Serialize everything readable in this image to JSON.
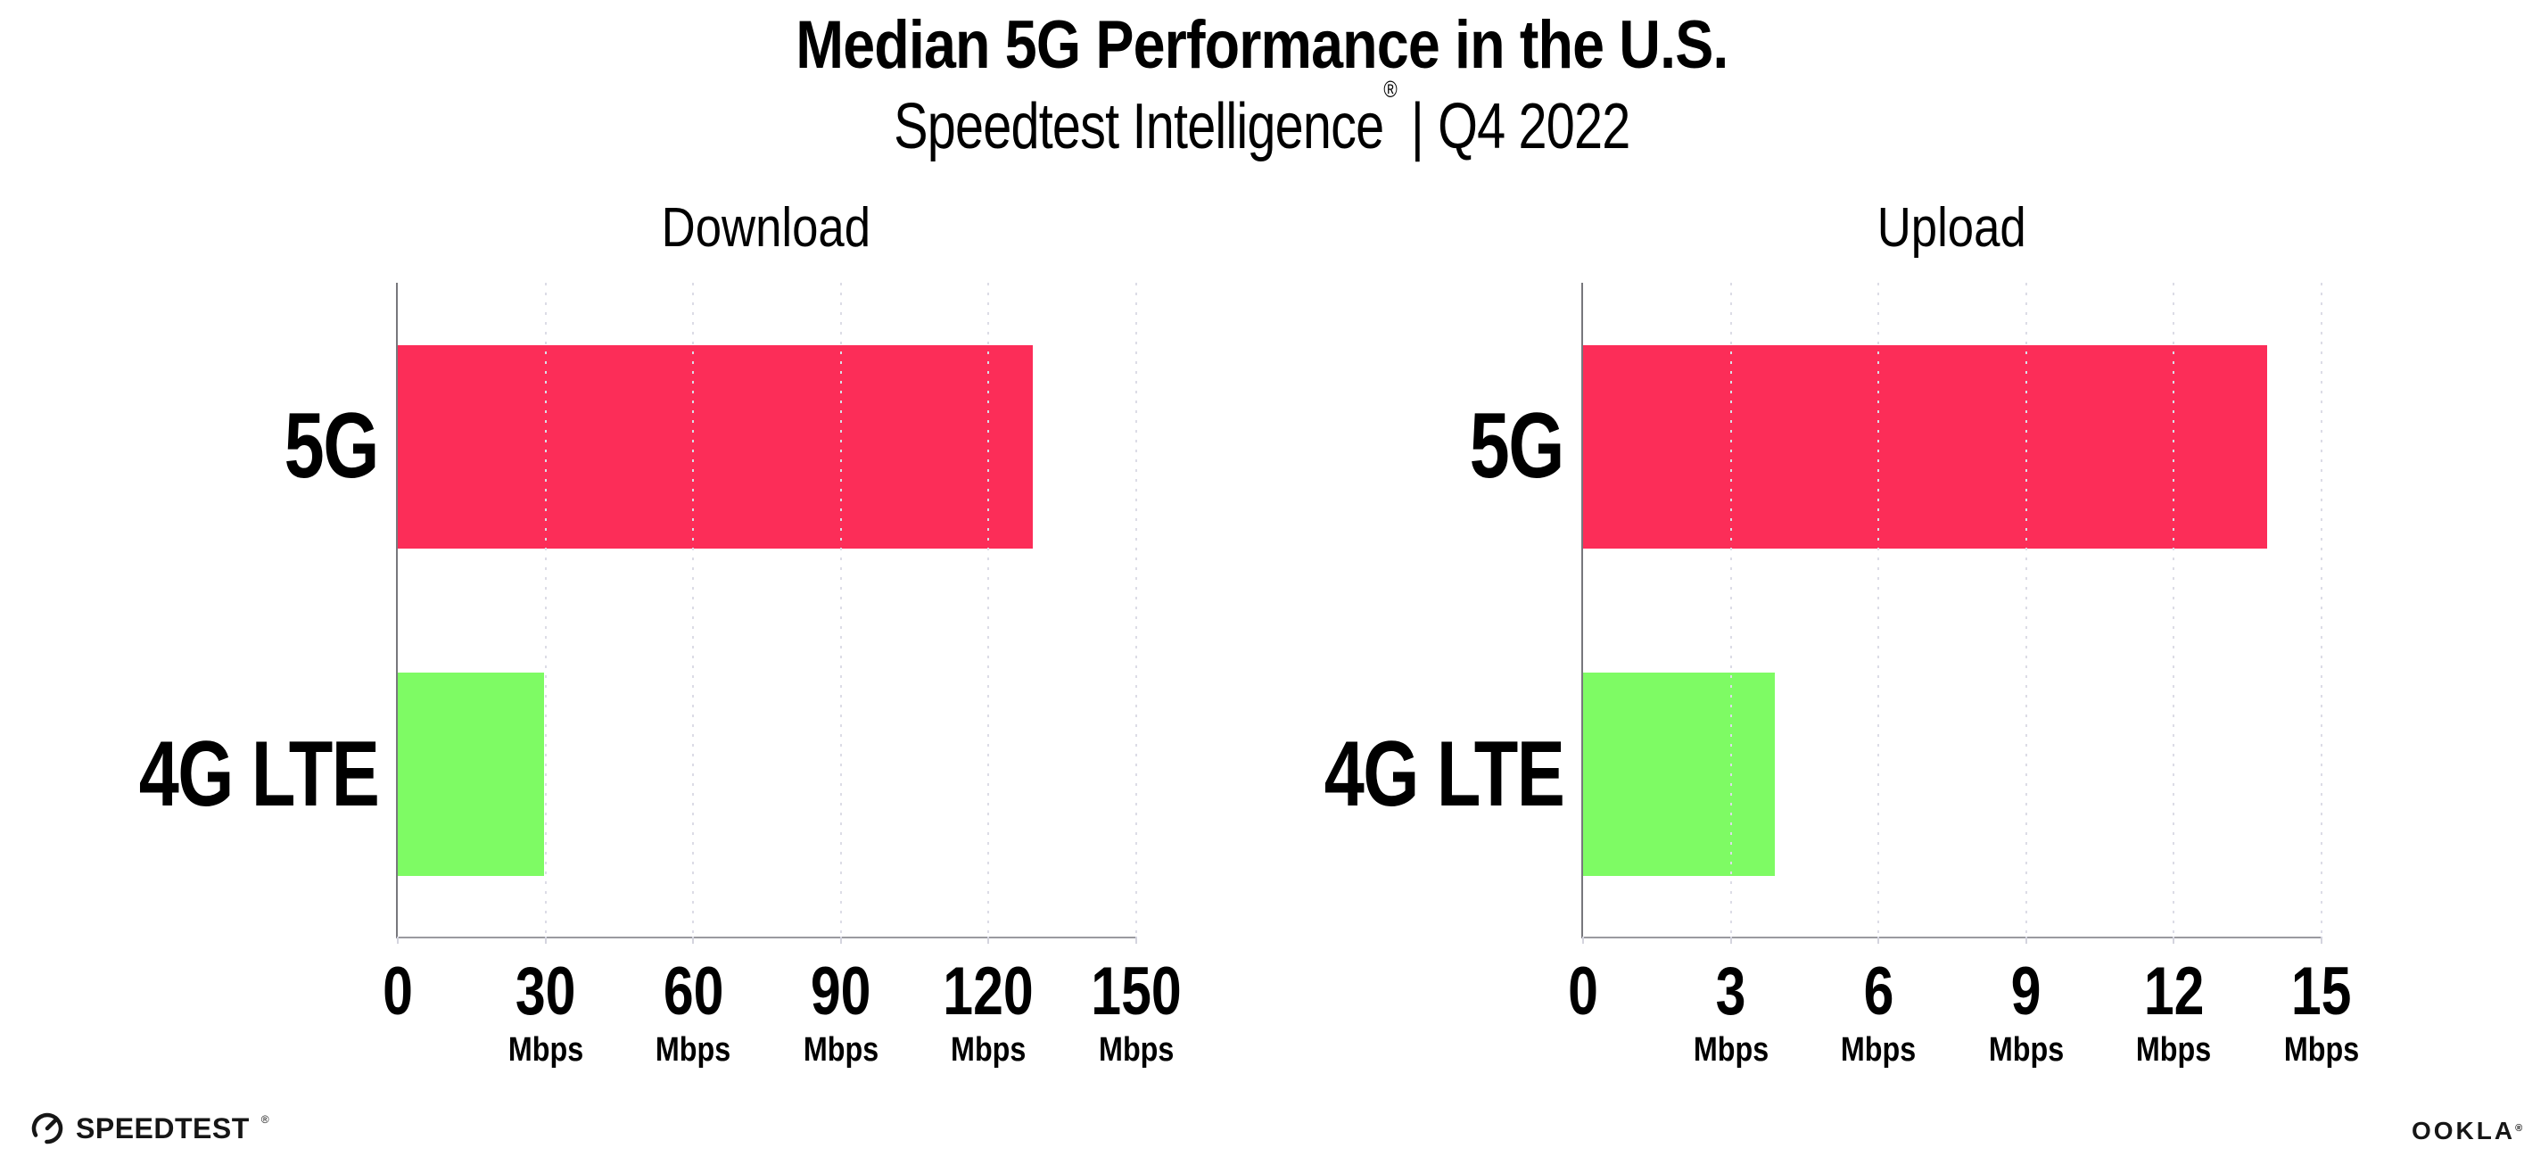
{
  "header": {
    "title": "Median 5G Performance in the U.S.",
    "subtitle_brand": "Speedtest Intelligence",
    "subtitle_mark": "®",
    "subtitle_divider": "|",
    "subtitle_period": "Q4 2022"
  },
  "chart_data": [
    {
      "type": "bar",
      "orientation": "horizontal",
      "title": "Download",
      "categories": [
        "5G",
        "4G LTE"
      ],
      "values": [
        129,
        29.7
      ],
      "unit": "Mbps",
      "xlim": [
        0,
        150
      ],
      "ticks": [
        0,
        30,
        60,
        90,
        120,
        150
      ],
      "colors": [
        "#FC2D58",
        "#7EFB64"
      ],
      "grid": "dotted vertical lines at ticks",
      "legend": "none"
    },
    {
      "type": "bar",
      "orientation": "horizontal",
      "title": "Upload",
      "categories": [
        "5G",
        "4G LTE"
      ],
      "values": [
        13.9,
        3.9
      ],
      "unit": "Mbps",
      "xlim": [
        0,
        15
      ],
      "ticks": [
        0,
        3,
        6,
        9,
        12,
        15
      ],
      "colors": [
        "#FC2D58",
        "#7EFB64"
      ],
      "grid": "dotted vertical lines at ticks",
      "legend": "none"
    }
  ],
  "footer": {
    "speedtest_wordmark": "SPEEDTEST",
    "speedtest_mark": "®",
    "ookla_wordmark": "OOKLA",
    "ookla_mark": "®"
  }
}
